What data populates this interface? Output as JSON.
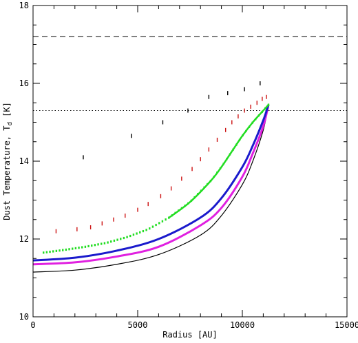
{
  "chart_data": {
    "type": "line",
    "xlabel": "Radius [AU]",
    "ylabel": "Dust Temperature, T",
    "ylabel_subscript": "d",
    "ylabel_unit": " [K]",
    "xlim": [
      0,
      15000
    ],
    "ylim": [
      10,
      18
    ],
    "xticks": [
      0,
      5000,
      10000,
      15000
    ],
    "yticks": [
      10,
      12,
      14,
      16,
      18
    ],
    "grid": false,
    "reference_lines": [
      {
        "style": "dashed",
        "y": 17.2,
        "color": "#000000"
      },
      {
        "style": "dotted",
        "y": 15.3,
        "color": "#000000"
      }
    ],
    "series": [
      {
        "style": "solid",
        "color": "#000000",
        "width": 1.2,
        "x": [
          0,
          2000,
          4000,
          6000,
          8000,
          9000,
          10000,
          10500,
          11000,
          11250
        ],
        "y": [
          11.15,
          11.2,
          11.35,
          11.6,
          12.1,
          12.6,
          13.4,
          14.0,
          14.8,
          15.45
        ]
      },
      {
        "style": "solid",
        "color": "#e020e0",
        "width": 3,
        "x": [
          0,
          2000,
          4000,
          6000,
          8000,
          9000,
          10000,
          10500,
          11000,
          11250
        ],
        "y": [
          11.35,
          11.4,
          11.55,
          11.8,
          12.35,
          12.8,
          13.6,
          14.2,
          14.9,
          15.45
        ]
      },
      {
        "style": "solid",
        "color": "#1a1acc",
        "width": 3,
        "x": [
          0,
          2000,
          4000,
          6000,
          8000,
          9000,
          10000,
          10500,
          11000,
          11250
        ],
        "y": [
          11.45,
          11.52,
          11.7,
          12.0,
          12.55,
          13.05,
          13.85,
          14.4,
          15.05,
          15.45
        ]
      },
      {
        "style": "points",
        "color": "#22dd22",
        "width": 2.5,
        "x": [
          500,
          1500,
          2500,
          3500,
          4500,
          5500,
          6500,
          7500,
          8500,
          9000,
          9500,
          10000,
          10500,
          11000,
          11250
        ],
        "y": [
          11.65,
          11.72,
          11.8,
          11.9,
          12.05,
          12.25,
          12.55,
          12.95,
          13.5,
          13.85,
          14.25,
          14.65,
          15.0,
          15.3,
          15.45
        ]
      },
      {
        "style": "ticks",
        "color": "#cc1111",
        "x": [
          1100,
          2100,
          2750,
          3300,
          3850,
          4400,
          5000,
          5500,
          6100,
          6600,
          7100,
          7600,
          8000,
          8400,
          8800,
          9200,
          9500,
          9800,
          10100,
          10400,
          10700,
          10950,
          11150
        ],
        "y": [
          12.2,
          12.25,
          12.3,
          12.4,
          12.5,
          12.6,
          12.75,
          12.9,
          13.1,
          13.3,
          13.55,
          13.8,
          14.05,
          14.3,
          14.55,
          14.8,
          15.0,
          15.15,
          15.3,
          15.4,
          15.5,
          15.6,
          15.65
        ]
      },
      {
        "style": "ticks",
        "color": "#000000",
        "x": [
          2400,
          4700,
          6200,
          7400,
          8400,
          9300,
          10100,
          10850
        ],
        "y": [
          14.1,
          14.65,
          15.0,
          15.3,
          15.65,
          15.75,
          15.85,
          16.0
        ]
      }
    ]
  }
}
